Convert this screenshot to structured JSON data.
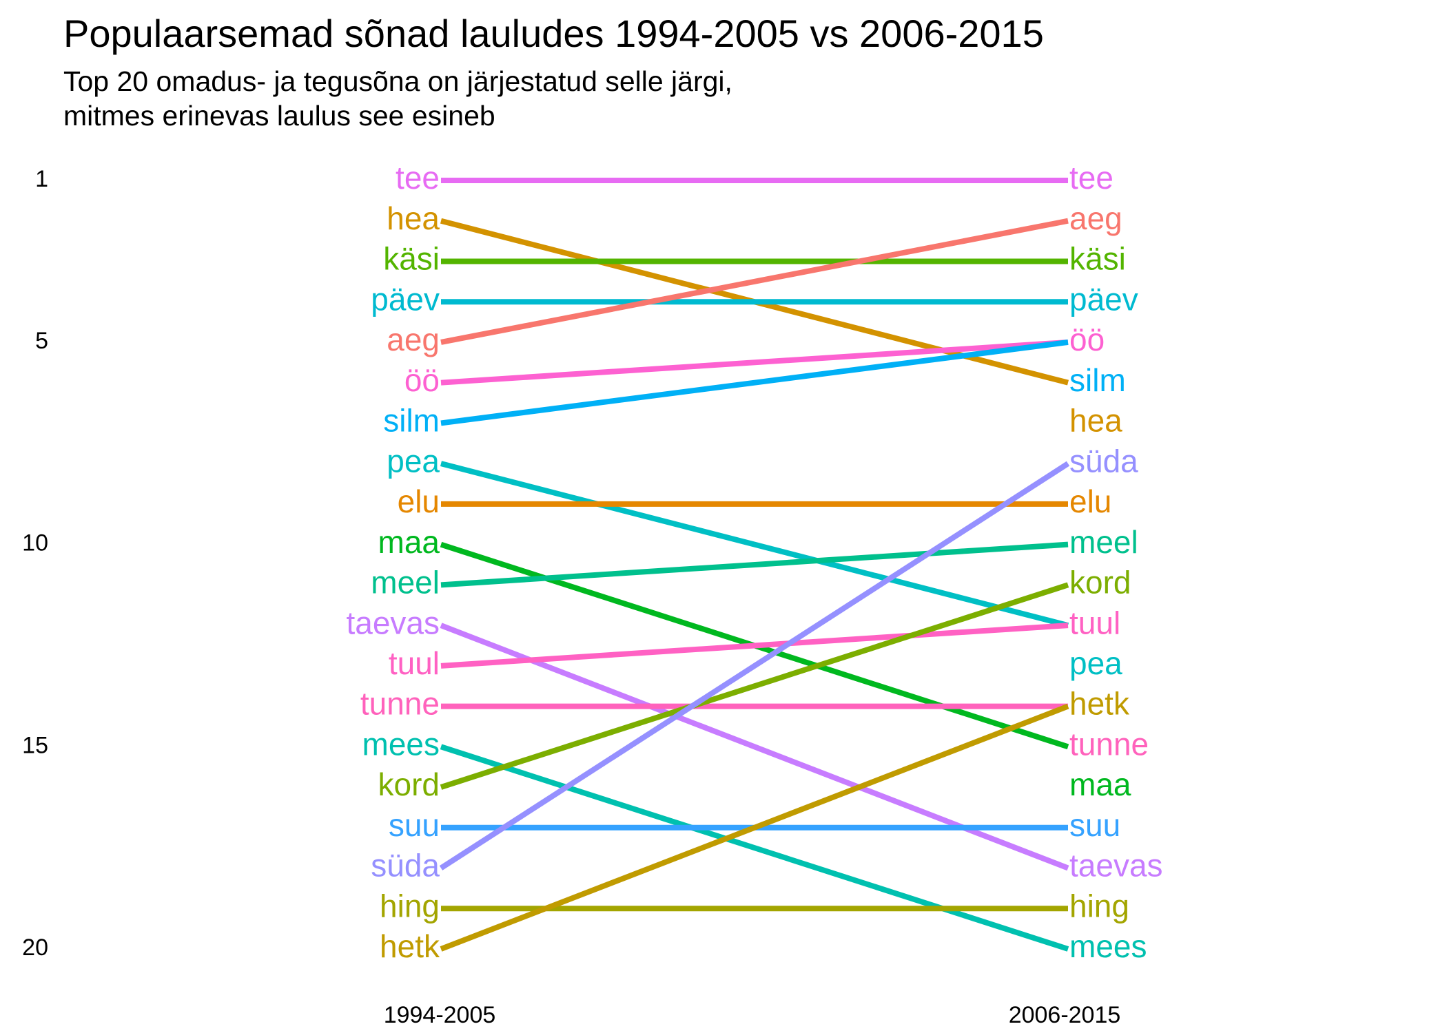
{
  "chart_data": {
    "type": "line",
    "title": "Populaarsemad sõnad lauludes 1994-2005 vs 2006-2015",
    "subtitle_lines": [
      "Top 20 omadus- ja tegusõna on järjestatud selle järgi,",
      "mitmes erinevas laulus see esineb"
    ],
    "x_categories": [
      "1994-2005",
      "2006-2015"
    ],
    "y_ticks": [
      "1",
      "5",
      "10",
      "15",
      "20"
    ],
    "y_range": [
      1,
      20
    ],
    "y_reversed": true,
    "grid": false,
    "series": [
      {
        "name": "tee",
        "color": "#E76BF3",
        "values": [
          1,
          1
        ]
      },
      {
        "name": "hea",
        "color": "#D39200",
        "values": [
          2,
          6
        ]
      },
      {
        "name": "käsi",
        "color": "#53B400",
        "values": [
          3,
          3
        ]
      },
      {
        "name": "päev",
        "color": "#00BAD0",
        "values": [
          4,
          4
        ]
      },
      {
        "name": "aeg",
        "color": "#F8766D",
        "values": [
          5,
          2
        ]
      },
      {
        "name": "öö",
        "color": "#FD61D1",
        "values": [
          6,
          5
        ]
      },
      {
        "name": "silm",
        "color": "#00B0F6",
        "values": [
          7,
          5
        ]
      },
      {
        "name": "pea",
        "color": "#00BFC4",
        "values": [
          8,
          12
        ]
      },
      {
        "name": "elu",
        "color": "#E58700",
        "values": [
          9,
          9
        ]
      },
      {
        "name": "maa",
        "color": "#00B81F",
        "values": [
          10,
          15
        ]
      },
      {
        "name": "meel",
        "color": "#00C08D",
        "values": [
          11,
          10
        ]
      },
      {
        "name": "taevas",
        "color": "#C77CFF",
        "values": [
          12,
          18
        ]
      },
      {
        "name": "tuul",
        "color": "#FF61C3",
        "values": [
          13,
          12
        ]
      },
      {
        "name": "tunne",
        "color": "#FF62BC",
        "values": [
          14,
          14
        ]
      },
      {
        "name": "mees",
        "color": "#00C0AF",
        "values": [
          15,
          20
        ]
      },
      {
        "name": "kord",
        "color": "#7CAE00",
        "values": [
          16,
          11
        ]
      },
      {
        "name": "suu",
        "color": "#35A2FF",
        "values": [
          17,
          17
        ]
      },
      {
        "name": "süda",
        "color": "#9590FF",
        "values": [
          18,
          8
        ]
      },
      {
        "name": "hing",
        "color": "#A3A500",
        "values": [
          19,
          19
        ]
      },
      {
        "name": "hetk",
        "color": "#C09B00",
        "values": [
          20,
          14
        ]
      }
    ],
    "right_labels": [
      {
        "name": "tee",
        "color": "#E76BF3",
        "rank": 1
      },
      {
        "name": "aeg",
        "color": "#F8766D",
        "rank": 2
      },
      {
        "name": "käsi",
        "color": "#53B400",
        "rank": 3
      },
      {
        "name": "päev",
        "color": "#00BAD0",
        "rank": 4
      },
      {
        "name": "öö",
        "color": "#FD61D1",
        "rank": 5
      },
      {
        "name": "silm",
        "color": "#00B0F6",
        "rank": 6
      },
      {
        "name": "hea",
        "color": "#D39200",
        "rank": 7
      },
      {
        "name": "süda",
        "color": "#9590FF",
        "rank": 8
      },
      {
        "name": "elu",
        "color": "#E58700",
        "rank": 9
      },
      {
        "name": "meel",
        "color": "#00C08D",
        "rank": 10
      },
      {
        "name": "kord",
        "color": "#7CAE00",
        "rank": 11
      },
      {
        "name": "tuul",
        "color": "#FF61C3",
        "rank": 12
      },
      {
        "name": "pea",
        "color": "#00BFC4",
        "rank": 13
      },
      {
        "name": "hetk",
        "color": "#C09B00",
        "rank": 14
      },
      {
        "name": "tunne",
        "color": "#FF62BC",
        "rank": 15
      },
      {
        "name": "maa",
        "color": "#00B81F",
        "rank": 16
      },
      {
        "name": "suu",
        "color": "#35A2FF",
        "rank": 17
      },
      {
        "name": "taevas",
        "color": "#C77CFF",
        "rank": 18
      },
      {
        "name": "hing",
        "color": "#A3A500",
        "rank": 19
      },
      {
        "name": "mees",
        "color": "#00C0AF",
        "rank": 20
      }
    ]
  }
}
